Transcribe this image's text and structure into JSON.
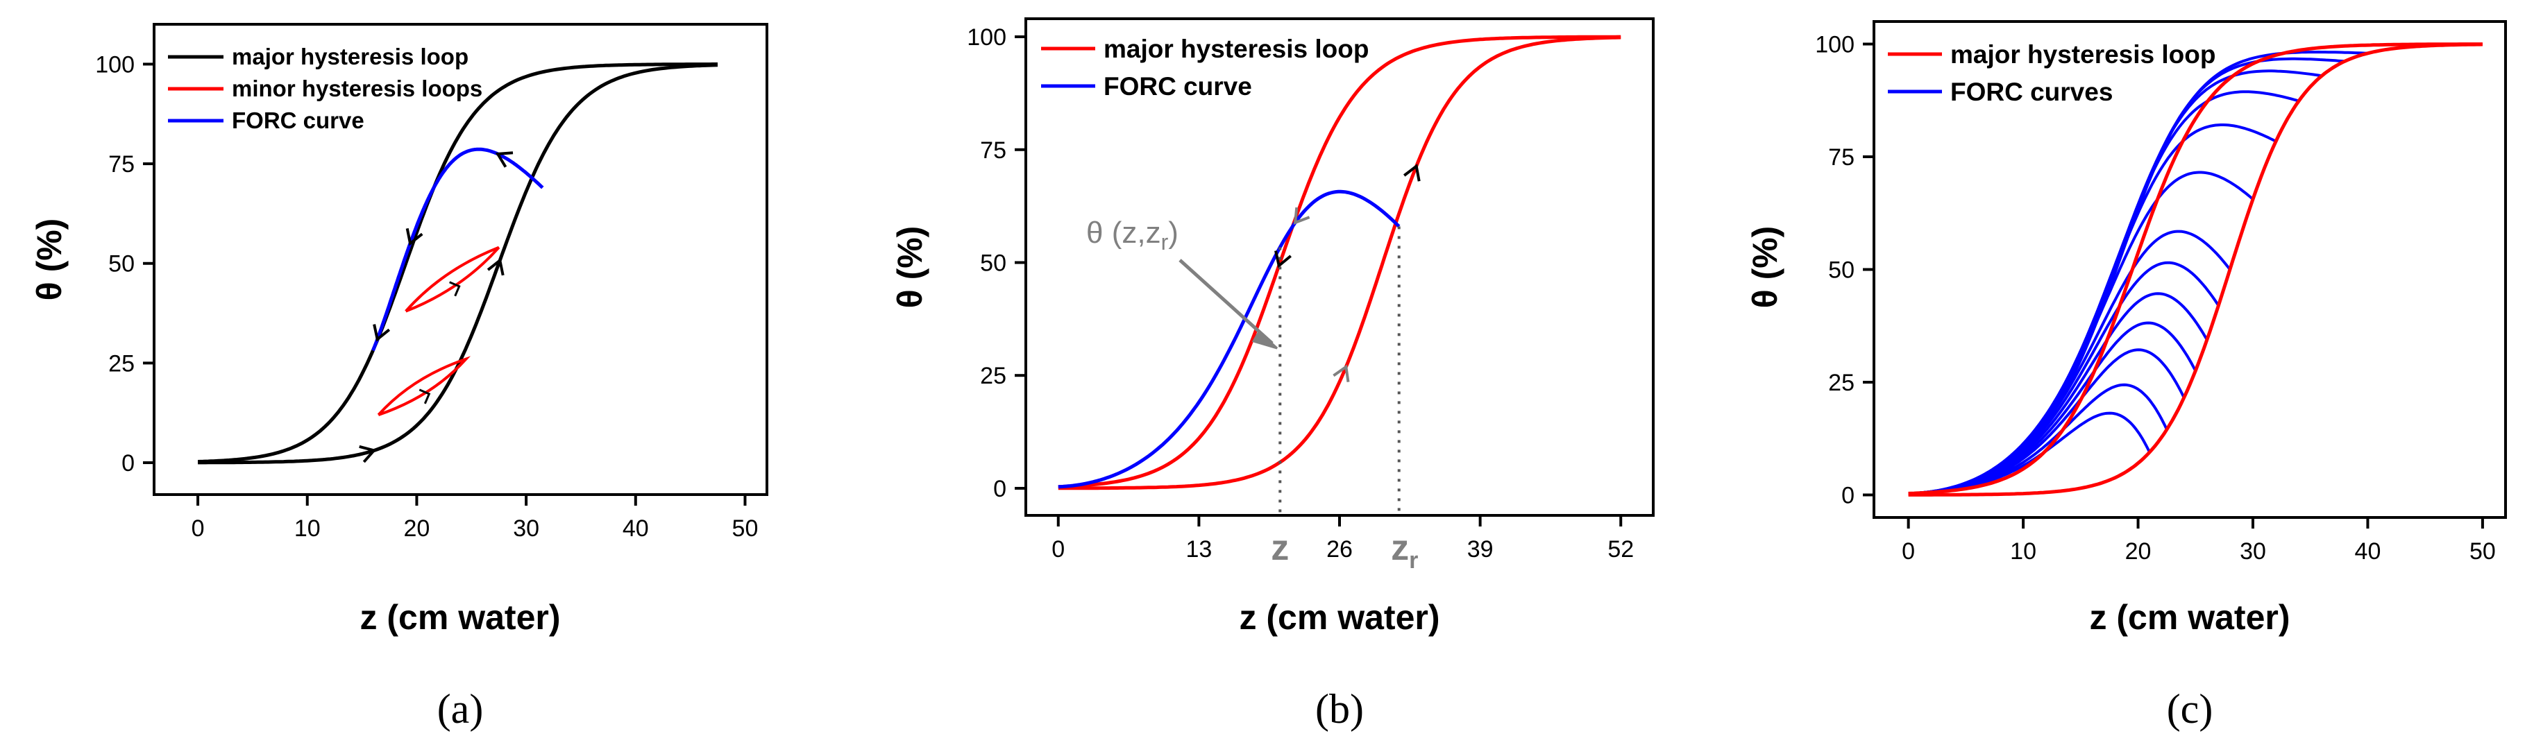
{
  "chart_data": [
    {
      "type": "line",
      "panel": "(a)",
      "xlabel": "z (cm water)",
      "ylabel": "θ (%)",
      "xlim": [
        -4,
        52
      ],
      "ylim": [
        -8,
        110
      ],
      "xticks": [
        0,
        10,
        20,
        30,
        40,
        50
      ],
      "yticks": [
        0,
        25,
        50,
        75,
        100
      ],
      "legend": [
        "major hysteresis loop",
        "minor hysteresis loops",
        "FORC curve"
      ],
      "colors": {
        "major": "#000000",
        "minor": "#ff0000",
        "forc": "#0000ff"
      },
      "major": {
        "drying_center": 19,
        "drying_width": 3.2,
        "wetting_center": 27.5,
        "wetting_width": 3.3,
        "x_max": 47.5
      },
      "forc": {
        "reversal_z": 31.5,
        "reversal_theta": 69,
        "end_z": 16
      },
      "minor_loops": [
        {
          "x1": 16.5,
          "y1": 12,
          "x2": 24.5,
          "y2": 26
        },
        {
          "x1": 19,
          "y1": 38,
          "x2": 27.5,
          "y2": 54
        }
      ]
    },
    {
      "type": "line",
      "panel": "(b)",
      "xlabel": "z (cm water)",
      "ylabel": "θ (%)",
      "xlim": [
        -3,
        55
      ],
      "ylim": [
        -6,
        104
      ],
      "xticks": [
        0,
        13,
        26,
        39,
        52
      ],
      "yticks": [
        0,
        25,
        50,
        75,
        100
      ],
      "legend": [
        "major hysteresis loop",
        "FORC curve"
      ],
      "colors": {
        "major": "#ff0000",
        "forc": "#0000ff",
        "annotation": "#808080"
      },
      "major": {
        "drying_center": 20.5,
        "drying_width": 3.6,
        "wetting_center": 30,
        "wetting_width": 3.4,
        "x_max": 52
      },
      "forc": {
        "reversal_z": 31.5,
        "reversal_theta": 58,
        "end_z": 0
      },
      "annotation": {
        "label": "θ (z,z",
        "sub": "r",
        "close": ")"
      },
      "markers": {
        "z": "z",
        "zr": "z",
        "zr_sub": "r",
        "z_pos": 20.5,
        "zr_pos": 31.5
      }
    },
    {
      "type": "line",
      "panel": "(c)",
      "xlabel": "z (cm water)",
      "ylabel": "θ (%)",
      "xlim": [
        -3,
        52
      ],
      "ylim": [
        -5,
        105
      ],
      "xticks": [
        0,
        10,
        20,
        30,
        40,
        50
      ],
      "yticks": [
        0,
        25,
        50,
        75,
        100
      ],
      "legend": [
        "major hysteresis loop",
        "FORC curves"
      ],
      "colors": {
        "major": "#ff0000",
        "forc": "#0000ff"
      },
      "major": {
        "drying_center": 19.5,
        "drying_width": 3.4,
        "wetting_center": 28,
        "wetting_width": 3.1,
        "x_max": 50
      },
      "forc_reversal_z": [
        21,
        22.5,
        24,
        25,
        26,
        27,
        28,
        30,
        32,
        34,
        36,
        38,
        40
      ]
    }
  ],
  "captions": [
    "(a)",
    "(b)",
    "(c)"
  ]
}
